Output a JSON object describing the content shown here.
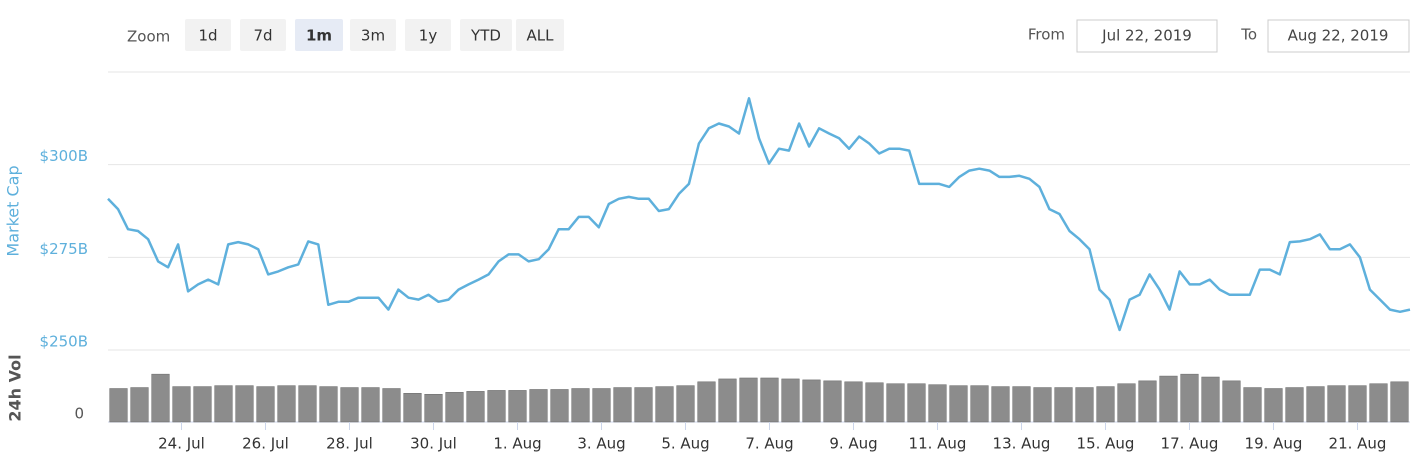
{
  "toolbar": {
    "zoom_label": "Zoom",
    "buttons": [
      "1d",
      "7d",
      "1m",
      "3m",
      "1y",
      "YTD",
      "ALL"
    ],
    "selected": 2,
    "from_label": "From",
    "from": "Jul 22, 2019",
    "to_label": "To",
    "to": "Aug 22, 2019"
  },
  "chart_data": [
    {
      "type": "line",
      "ylabel": "Market Cap",
      "color": "#5eb0dc",
      "xlim": [
        "2019-07-22T06:00",
        "2019-08-22T06:00"
      ],
      "ylim": [
        250,
        325
      ],
      "yticks": [
        {
          "value": 250,
          "label": "$250B"
        },
        {
          "value": 275,
          "label": "$275B"
        },
        {
          "value": 300,
          "label": "$300B"
        }
      ],
      "grid": true,
      "values": [
        290.8,
        288.0,
        282.6,
        282.1,
        279.9,
        273.9,
        272.3,
        278.5,
        265.8,
        267.7,
        269.0,
        267.7,
        278.5,
        279.1,
        278.5,
        277.2,
        270.4,
        271.2,
        272.3,
        273.1,
        279.3,
        278.5,
        262.2,
        263.0,
        263.0,
        264.1,
        264.1,
        264.1,
        260.9,
        266.3,
        264.1,
        263.6,
        264.9,
        263.0,
        263.6,
        266.3,
        267.7,
        269.0,
        270.4,
        273.9,
        275.8,
        275.8,
        273.9,
        274.5,
        277.2,
        282.6,
        282.6,
        285.9,
        285.9,
        283.1,
        289.4,
        290.8,
        291.3,
        290.8,
        290.8,
        287.5,
        288.0,
        292.1,
        294.8,
        305.7,
        309.8,
        311.1,
        310.3,
        308.4,
        317.9,
        307.1,
        300.3,
        304.3,
        303.8,
        311.1,
        304.9,
        309.8,
        308.4,
        307.1,
        304.3,
        307.6,
        305.7,
        303.0,
        304.3,
        304.3,
        303.8,
        294.8,
        294.8,
        294.8,
        294.0,
        296.7,
        298.4,
        298.9,
        298.4,
        296.7,
        296.7,
        297.0,
        296.2,
        294.0,
        288.0,
        286.7,
        282.1,
        279.9,
        277.2,
        266.3,
        263.6,
        255.4,
        263.6,
        264.9,
        270.4,
        266.3,
        260.9,
        271.2,
        267.7,
        267.7,
        269.0,
        266.3,
        264.9,
        264.9,
        264.9,
        271.7,
        271.7,
        270.4,
        279.1,
        279.3,
        279.9,
        281.2,
        277.2,
        277.2,
        278.5,
        275.0,
        266.3,
        263.6,
        260.9,
        260.3,
        260.9
      ]
    },
    {
      "type": "bar",
      "ylabel": "24h Vol",
      "color": "#8c8c8c",
      "xlim": [
        "2019-07-22T06:00",
        "2019-08-22T06:00"
      ],
      "ylim": [
        0,
        70
      ],
      "yticks": [
        0
      ],
      "xticks": [
        {
          "value": "2019-07-24",
          "label": "24. Jul"
        },
        {
          "value": "2019-07-26",
          "label": "26. Jul"
        },
        {
          "value": "2019-07-28",
          "label": "28. Jul"
        },
        {
          "value": "2019-07-30",
          "label": "30. Jul"
        },
        {
          "value": "2019-08-01",
          "label": "1. Aug"
        },
        {
          "value": "2019-08-03",
          "label": "3. Aug"
        },
        {
          "value": "2019-08-05",
          "label": "5. Aug"
        },
        {
          "value": "2019-08-07",
          "label": "7. Aug"
        },
        {
          "value": "2019-08-09",
          "label": "9. Aug"
        },
        {
          "value": "2019-08-11",
          "label": "11. Aug"
        },
        {
          "value": "2019-08-13",
          "label": "13. Aug"
        },
        {
          "value": "2019-08-15",
          "label": "15. Aug"
        },
        {
          "value": "2019-08-17",
          "label": "17. Aug"
        },
        {
          "value": "2019-08-19",
          "label": "19. Aug"
        },
        {
          "value": "2019-08-21",
          "label": "21. Aug"
        }
      ],
      "values": [
        35,
        36,
        50,
        37,
        37,
        38,
        38,
        37,
        38,
        38,
        37,
        36,
        36,
        35,
        30,
        29,
        31,
        32,
        33,
        33,
        34,
        34,
        35,
        35,
        36,
        36,
        37,
        38,
        42,
        45,
        46,
        46,
        45,
        44,
        43,
        42,
        41,
        40,
        40,
        39,
        38,
        38,
        37,
        37,
        36,
        36,
        36,
        37,
        40,
        43,
        48,
        50,
        47,
        43,
        36,
        35,
        36,
        37,
        38,
        38,
        40,
        42
      ]
    }
  ]
}
